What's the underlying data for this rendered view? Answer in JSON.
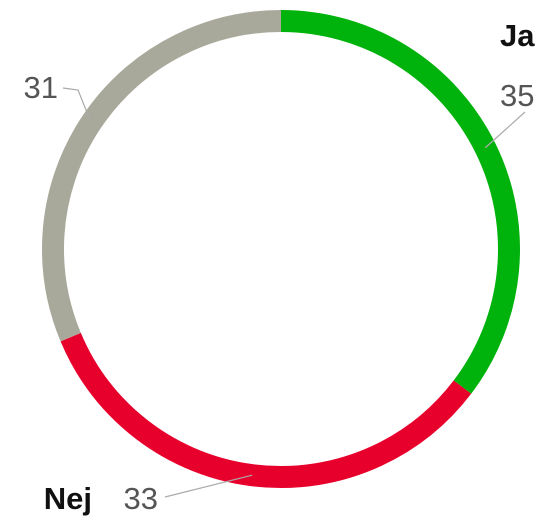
{
  "chart_data": {
    "type": "donut",
    "categories": [
      "Ja",
      "Nej",
      null
    ],
    "values": [
      35,
      33,
      31
    ],
    "colors": [
      "#00b20c",
      "#e8002d",
      "#a9a99b"
    ]
  }
}
